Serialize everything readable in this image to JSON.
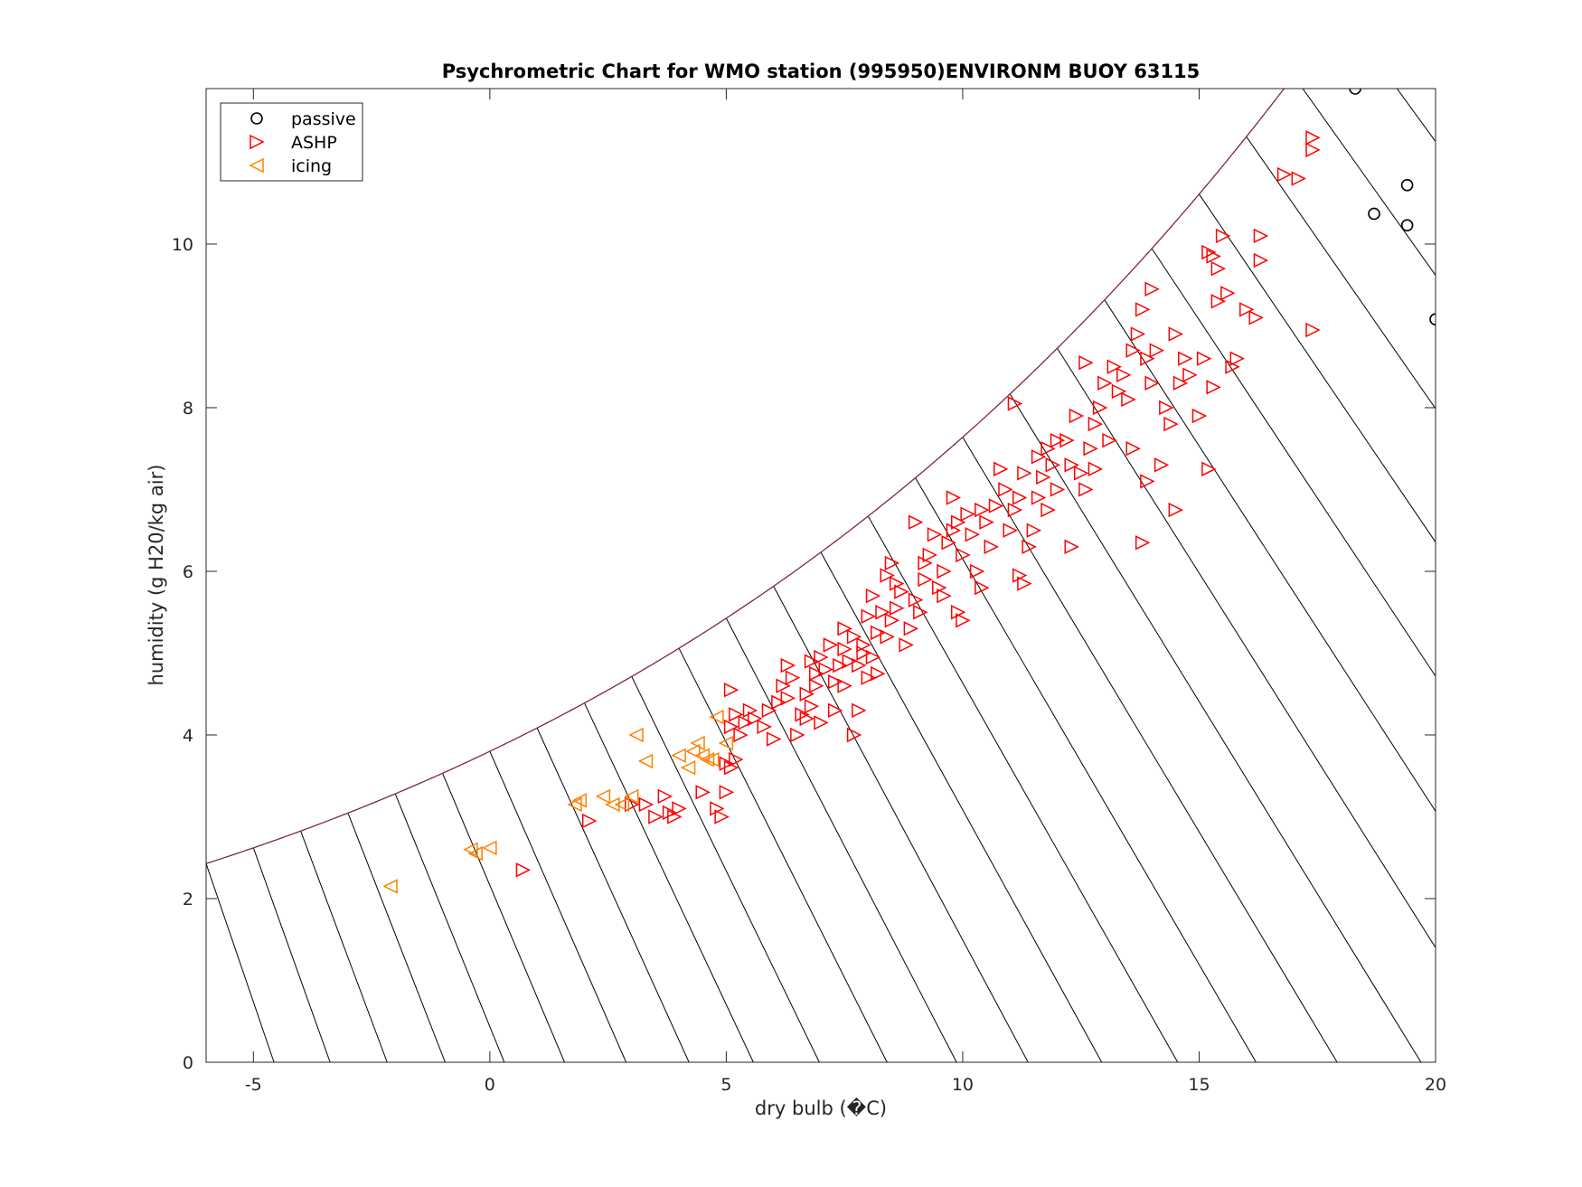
{
  "chart_data": {
    "type": "scatter",
    "title": "Psychrometric Chart for WMO station (995950)ENVIRONM BUOY 63115",
    "xlabel": "dry bulb (�C)",
    "ylabel": "humidity (g H20/kg air)",
    "xlim": [
      -6,
      20
    ],
    "ylim": [
      0,
      11.9
    ],
    "x_ticks": [
      -5,
      0,
      5,
      10,
      15,
      20
    ],
    "y_ticks": [
      0,
      2,
      4,
      6,
      8,
      10
    ],
    "x_tick_labels": [
      "-5",
      "0",
      "5",
      "10",
      "15",
      "20"
    ],
    "y_tick_labels": [
      "0",
      "2",
      "4",
      "6",
      "8",
      "10"
    ],
    "grid": false,
    "legend_position": "top-left",
    "saturation_curve_color": "#7a2a3a",
    "wet_bulb_line_color": "#000000",
    "wet_bulb_temperatures": [
      -6,
      -5,
      -4,
      -3,
      -2,
      -1,
      0,
      1,
      2,
      3,
      4,
      5,
      6,
      7,
      8,
      9,
      10,
      11,
      12,
      13,
      14,
      15,
      16,
      17,
      18,
      19,
      20
    ],
    "series": [
      {
        "name": "passive",
        "marker": "circle",
        "color": "#000000",
        "points": [
          [
            18.3,
            11.9
          ],
          [
            18.7,
            10.37
          ],
          [
            19.4,
            10.72
          ],
          [
            19.4,
            10.23
          ],
          [
            20.0,
            9.08
          ]
        ]
      },
      {
        "name": "ASHP",
        "marker": "triangle-right",
        "color": "#ff0000",
        "points": [
          [
            0.7,
            2.35
          ],
          [
            2.1,
            2.95
          ],
          [
            3.0,
            3.15
          ],
          [
            3.3,
            3.15
          ],
          [
            3.5,
            3.0
          ],
          [
            3.7,
            3.25
          ],
          [
            3.8,
            3.05
          ],
          [
            3.9,
            3.0
          ],
          [
            4.0,
            3.1
          ],
          [
            4.5,
            3.3
          ],
          [
            4.8,
            3.1
          ],
          [
            4.9,
            3.0
          ],
          [
            5.0,
            3.3
          ],
          [
            5.0,
            3.65
          ],
          [
            5.1,
            3.6
          ],
          [
            5.2,
            3.7
          ],
          [
            5.1,
            4.1
          ],
          [
            5.2,
            4.25
          ],
          [
            5.1,
            4.55
          ],
          [
            5.3,
            4.0
          ],
          [
            5.4,
            4.15
          ],
          [
            5.5,
            4.3
          ],
          [
            5.6,
            4.2
          ],
          [
            5.8,
            4.1
          ],
          [
            5.9,
            4.3
          ],
          [
            6.1,
            4.4
          ],
          [
            6.2,
            4.6
          ],
          [
            6.3,
            4.45
          ],
          [
            6.4,
            4.7
          ],
          [
            6.0,
            3.95
          ],
          [
            6.5,
            4.0
          ],
          [
            6.6,
            4.25
          ],
          [
            6.7,
            4.5
          ],
          [
            6.8,
            4.35
          ],
          [
            6.9,
            4.6
          ],
          [
            6.8,
            4.9
          ],
          [
            6.9,
            4.75
          ],
          [
            7.0,
            4.95
          ],
          [
            7.1,
            4.8
          ],
          [
            7.2,
            5.1
          ],
          [
            7.0,
            4.15
          ],
          [
            7.3,
            4.3
          ],
          [
            7.3,
            4.65
          ],
          [
            7.4,
            4.85
          ],
          [
            7.5,
            4.6
          ],
          [
            7.6,
            4.9
          ],
          [
            7.5,
            5.05
          ],
          [
            7.7,
            5.2
          ],
          [
            7.8,
            4.85
          ],
          [
            7.9,
            5.0
          ],
          [
            7.7,
            4.0
          ],
          [
            7.8,
            4.3
          ],
          [
            8.0,
            4.7
          ],
          [
            8.1,
            4.95
          ],
          [
            8.2,
            5.25
          ],
          [
            8.0,
            5.45
          ],
          [
            8.1,
            5.7
          ],
          [
            8.3,
            5.5
          ],
          [
            8.4,
            5.2
          ],
          [
            8.5,
            5.4
          ],
          [
            8.4,
            5.95
          ],
          [
            8.5,
            6.1
          ],
          [
            8.6,
            5.55
          ],
          [
            8.7,
            5.75
          ],
          [
            8.8,
            5.1
          ],
          [
            8.9,
            5.3
          ],
          [
            9.0,
            5.65
          ],
          [
            9.1,
            5.5
          ],
          [
            9.0,
            6.6
          ],
          [
            9.2,
            5.9
          ],
          [
            9.3,
            6.2
          ],
          [
            9.4,
            6.45
          ],
          [
            9.5,
            5.8
          ],
          [
            9.6,
            6.0
          ],
          [
            9.7,
            6.35
          ],
          [
            9.8,
            6.5
          ],
          [
            9.9,
            6.6
          ],
          [
            10.0,
            6.2
          ],
          [
            9.9,
            5.5
          ],
          [
            10.0,
            5.4
          ],
          [
            10.1,
            6.7
          ],
          [
            10.2,
            6.45
          ],
          [
            10.3,
            6.0
          ],
          [
            10.5,
            6.6
          ],
          [
            10.6,
            6.3
          ],
          [
            10.7,
            6.8
          ],
          [
            10.8,
            7.25
          ],
          [
            10.9,
            7.0
          ],
          [
            11.0,
            6.5
          ],
          [
            11.1,
            6.75
          ],
          [
            11.2,
            6.9
          ],
          [
            11.3,
            7.2
          ],
          [
            11.1,
            8.05
          ],
          [
            11.2,
            5.95
          ],
          [
            11.3,
            5.85
          ],
          [
            11.4,
            6.3
          ],
          [
            11.5,
            6.5
          ],
          [
            11.6,
            6.9
          ],
          [
            11.7,
            7.15
          ],
          [
            11.8,
            7.5
          ],
          [
            11.9,
            7.3
          ],
          [
            12.0,
            7.0
          ],
          [
            12.2,
            7.6
          ],
          [
            12.3,
            7.3
          ],
          [
            12.4,
            7.9
          ],
          [
            12.3,
            6.3
          ],
          [
            12.5,
            7.2
          ],
          [
            12.6,
            7.0
          ],
          [
            12.7,
            7.5
          ],
          [
            12.8,
            7.8
          ],
          [
            12.9,
            8.0
          ],
          [
            13.0,
            8.3
          ],
          [
            13.1,
            7.6
          ],
          [
            13.2,
            8.5
          ],
          [
            13.3,
            8.2
          ],
          [
            13.4,
            8.4
          ],
          [
            13.5,
            8.1
          ],
          [
            13.6,
            7.5
          ],
          [
            13.7,
            8.9
          ],
          [
            13.8,
            9.2
          ],
          [
            13.8,
            6.35
          ],
          [
            13.9,
            8.6
          ],
          [
            14.0,
            8.3
          ],
          [
            14.1,
            8.7
          ],
          [
            14.2,
            7.3
          ],
          [
            14.3,
            8.0
          ],
          [
            14.4,
            7.8
          ],
          [
            14.5,
            8.9
          ],
          [
            14.5,
            6.75
          ],
          [
            14.6,
            8.3
          ],
          [
            14.7,
            8.6
          ],
          [
            14.8,
            8.4
          ],
          [
            15.0,
            7.9
          ],
          [
            15.1,
            8.6
          ],
          [
            15.2,
            9.9
          ],
          [
            15.3,
            9.85
          ],
          [
            15.4,
            9.7
          ],
          [
            15.5,
            10.1
          ],
          [
            15.6,
            9.4
          ],
          [
            15.7,
            8.5
          ],
          [
            15.8,
            8.6
          ],
          [
            15.2,
            7.25
          ],
          [
            15.3,
            8.25
          ],
          [
            15.4,
            9.3
          ],
          [
            16.0,
            9.2
          ],
          [
            16.2,
            9.1
          ],
          [
            16.3,
            9.8
          ],
          [
            16.3,
            10.1
          ],
          [
            16.8,
            10.85
          ],
          [
            17.1,
            10.8
          ],
          [
            17.4,
            11.3
          ],
          [
            17.4,
            11.15
          ],
          [
            17.4,
            8.95
          ],
          [
            7.5,
            5.3
          ],
          [
            8.6,
            5.85
          ],
          [
            9.2,
            6.1
          ],
          [
            9.8,
            6.9
          ],
          [
            10.4,
            6.75
          ],
          [
            11.6,
            7.4
          ],
          [
            12.0,
            7.6
          ],
          [
            12.8,
            7.25
          ],
          [
            13.6,
            8.7
          ],
          [
            14.0,
            9.45
          ],
          [
            6.3,
            4.85
          ],
          [
            6.7,
            4.2
          ],
          [
            7.9,
            5.1
          ],
          [
            8.2,
            4.75
          ],
          [
            9.6,
            5.7
          ],
          [
            10.4,
            5.8
          ],
          [
            11.8,
            6.75
          ],
          [
            12.6,
            8.55
          ],
          [
            13.9,
            7.1
          ]
        ]
      },
      {
        "name": "icing",
        "marker": "triangle-left",
        "color": "#ff8000",
        "points": [
          [
            -2.1,
            2.15
          ],
          [
            -0.4,
            2.6
          ],
          [
            -0.3,
            2.55
          ],
          [
            0.0,
            2.62
          ],
          [
            1.8,
            3.15
          ],
          [
            1.9,
            3.2
          ],
          [
            2.4,
            3.25
          ],
          [
            2.6,
            3.15
          ],
          [
            2.8,
            3.15
          ],
          [
            3.0,
            3.25
          ],
          [
            3.1,
            4.0
          ],
          [
            3.3,
            3.68
          ],
          [
            4.0,
            3.75
          ],
          [
            4.2,
            3.6
          ],
          [
            4.3,
            3.8
          ],
          [
            4.4,
            3.9
          ],
          [
            4.5,
            3.75
          ],
          [
            4.6,
            3.7
          ],
          [
            4.7,
            3.7
          ],
          [
            4.8,
            4.22
          ],
          [
            5.0,
            3.9
          ]
        ]
      }
    ]
  }
}
